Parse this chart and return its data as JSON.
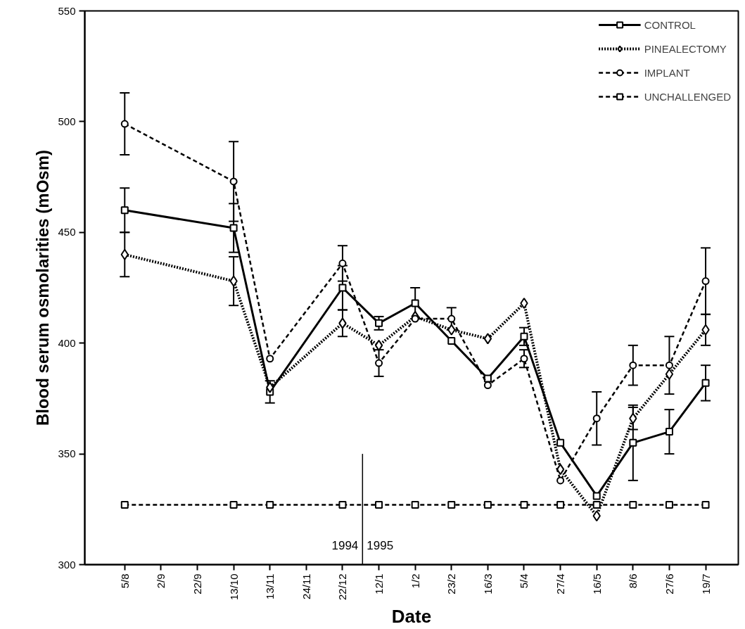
{
  "chart_data": {
    "type": "line",
    "xlabel": "Date",
    "ylabel": "Blood serum osmolarities (mOsm)",
    "categories": [
      "5/8",
      "2/9",
      "22/9",
      "13/10",
      "13/11",
      "24/11",
      "22/12",
      "12/1",
      "1/2",
      "23/2",
      "16/3",
      "5/4",
      "27/4",
      "16/5",
      "8/6",
      "27/6",
      "19/7"
    ],
    "series": [
      {
        "name": "CONTROL",
        "color": "#000000",
        "line_style": "solid",
        "marker": "square",
        "values": [
          460,
          null,
          null,
          452,
          378,
          null,
          425,
          409,
          418,
          401,
          384,
          403,
          355,
          331,
          355,
          360,
          382
        ],
        "errors": [
          10,
          null,
          null,
          11,
          5,
          null,
          10,
          3,
          7,
          null,
          null,
          4,
          null,
          null,
          17,
          10,
          8
        ]
      },
      {
        "name": "PINEALECTOMY",
        "color": "#000000",
        "line_style": "dotted",
        "marker": "diamond",
        "values": [
          440,
          null,
          null,
          428,
          380,
          null,
          409,
          399,
          412,
          406,
          402,
          418,
          343,
          322,
          366,
          386,
          406
        ],
        "errors": [
          10,
          null,
          null,
          11,
          null,
          null,
          6,
          null,
          null,
          null,
          null,
          null,
          null,
          null,
          5,
          null,
          7
        ]
      },
      {
        "name": "IMPLANT",
        "color": "#000000",
        "line_style": "dashed",
        "marker": "circle",
        "values": [
          499,
          null,
          null,
          473,
          393,
          null,
          436,
          391,
          411,
          411,
          381,
          393,
          338,
          366,
          390,
          390,
          428
        ],
        "errors": [
          14,
          null,
          null,
          18,
          null,
          null,
          8,
          6,
          null,
          5,
          null,
          4,
          null,
          12,
          9,
          13,
          15
        ]
      },
      {
        "name": "UNCHALLENGED",
        "color": "#000000",
        "line_style": "dashed",
        "marker": "square",
        "values": [
          327,
          null,
          null,
          327,
          327,
          null,
          327,
          327,
          327,
          327,
          327,
          327,
          327,
          327,
          327,
          327,
          327
        ]
      }
    ],
    "ylim": [
      300,
      550
    ],
    "yticks": [
      300,
      350,
      400,
      450,
      500,
      550
    ],
    "annotations": [
      "1994",
      "1995"
    ],
    "legend": "top right",
    "grid": false
  }
}
